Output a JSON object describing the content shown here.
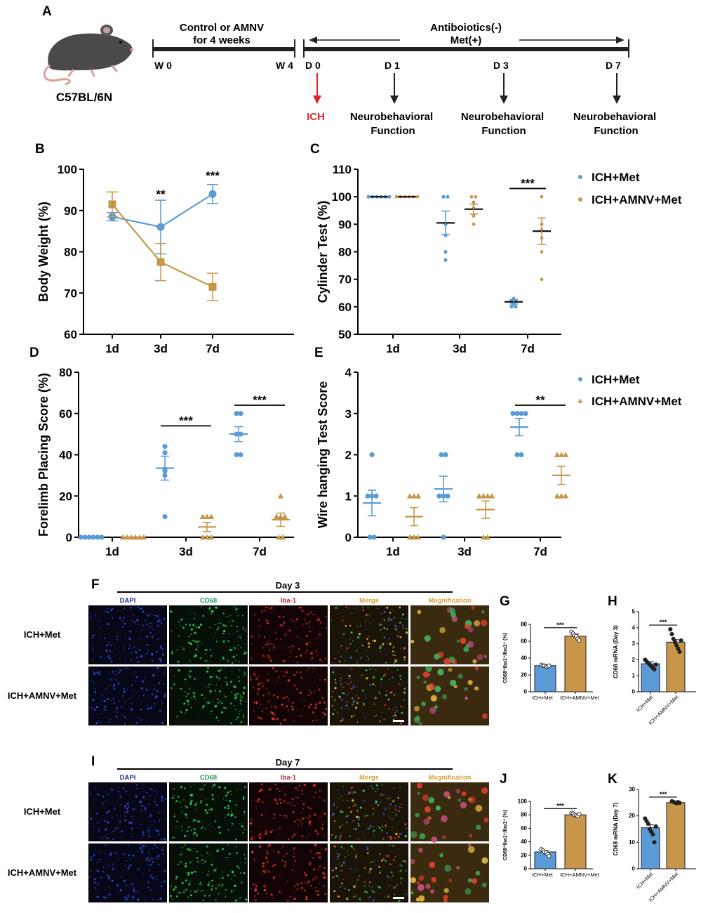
{
  "colors": {
    "blue": "#5b9bd5",
    "orange": "#c8964a",
    "red": "#d9262b",
    "black": "#000000",
    "dapi": "#1a2f8c",
    "cd68": "#1f9a4a",
    "iba": "#c0262a",
    "merge": "#d4a13a"
  },
  "panel_labels": {
    "A": "A",
    "B": "B",
    "C": "C",
    "D": "D",
    "E": "E",
    "F": "F",
    "G": "G",
    "H": "H",
    "I": "I",
    "J": "J",
    "K": "K"
  },
  "timeline": {
    "mouse_strain": "C57BL/6N",
    "phase1_line1": "Control or AMNV",
    "phase1_line2": "for 4 weeks",
    "w0": "W 0",
    "w4": "W 4",
    "phase2_line1": "Antiboiotics(-)",
    "phase2_line2": "Met(+)",
    "d0": "D 0",
    "d1": "D  1",
    "d3": "D  3",
    "d7": "D  7",
    "ich": "ICH",
    "neuro_line1": "Neurobehavioral",
    "neuro_line2": "Function"
  },
  "chart_data": [
    {
      "id": "B",
      "type": "line",
      "ylabel": "Body Weight (%)",
      "categories": [
        "1d",
        "3d",
        "7d"
      ],
      "ylim": [
        60,
        100
      ],
      "yticks": [
        60,
        70,
        80,
        90,
        100
      ],
      "series": [
        {
          "name": "ICH+Met",
          "values": [
            88.5,
            86,
            94
          ],
          "err": [
            1,
            6.5,
            2.3
          ],
          "marker": "circle"
        },
        {
          "name": "ICH+AMNV+Met",
          "values": [
            91.5,
            77.5,
            71.5
          ],
          "err": [
            3,
            4.5,
            3.3
          ],
          "marker": "square"
        }
      ],
      "sig": [
        {
          "cat": 1,
          "text": "**",
          "y": 93
        },
        {
          "cat": 2,
          "text": "***",
          "y": 97.5
        }
      ]
    },
    {
      "id": "C",
      "type": "scatter",
      "ylabel": "Cylinder Test (%)",
      "categories": [
        "1d",
        "3d",
        "7d"
      ],
      "ylim": [
        50,
        110
      ],
      "yticks": [
        50,
        60,
        70,
        80,
        90,
        100,
        110
      ],
      "series": [
        {
          "name": "ICH+Met",
          "mean": [
            100,
            90.5,
            61.8
          ],
          "sem": [
            0,
            4.3,
            0.8
          ],
          "points": [
            [
              100,
              100,
              100,
              100,
              100,
              100
            ],
            [
              100,
              100,
              90,
              86,
              80,
              77
            ],
            [
              63,
              62,
              62,
              61,
              60,
              60
            ]
          ]
        },
        {
          "name": "ICH+AMNV+Met",
          "mean": [
            100,
            95.5,
            87.5
          ],
          "sem": [
            0,
            1.8,
            4.8
          ],
          "points": [
            [
              100,
              100,
              100,
              100,
              100,
              100
            ],
            [
              100,
              100,
              98,
              96,
              93,
              90
            ],
            [
              100,
              90,
              88,
              85,
              80,
              70
            ]
          ]
        }
      ],
      "sig": [
        {
          "cat": 2,
          "text": "***",
          "y": 103
        }
      ],
      "legend": [
        "ICH+Met",
        "ICH+AMNV+Met"
      ]
    },
    {
      "id": "D",
      "type": "scatter",
      "ylabel": "Forelimb Placing Score (%)",
      "categories": [
        "1d",
        "3d",
        "7d"
      ],
      "ylim": [
        0,
        80
      ],
      "yticks": [
        0,
        20,
        40,
        60,
        80
      ],
      "series": [
        {
          "name": "ICH+Met",
          "mean": [
            0,
            33.5,
            50
          ],
          "sem": [
            0,
            5.8,
            3.6
          ],
          "points": [
            [
              0,
              0,
              0,
              0,
              0,
              0
            ],
            [
              44,
              41,
              33,
              32,
              30,
              10
            ],
            [
              60,
              60,
              50,
              50,
              40,
              40
            ]
          ]
        },
        {
          "name": "ICH+AMNV+Met",
          "mean": [
            0,
            5,
            8.5
          ],
          "sem": [
            0,
            2.2,
            3.2
          ],
          "points": [
            [
              0,
              0,
              0,
              0,
              0,
              0
            ],
            [
              10,
              10,
              10,
              0,
              0,
              0
            ],
            [
              20,
              10,
              10,
              10,
              0,
              0
            ]
          ]
        }
      ],
      "sig": [
        {
          "cat": 1,
          "text": "***",
          "y": 54
        },
        {
          "cat": 2,
          "text": "***",
          "y": 64
        }
      ]
    },
    {
      "id": "E",
      "type": "scatter",
      "ylabel": "Wire hanging Test Score",
      "categories": [
        "1d",
        "3d",
        "7d"
      ],
      "ylim": [
        0,
        4
      ],
      "yticks": [
        0,
        1,
        2,
        3,
        4
      ],
      "series": [
        {
          "name": "ICH+Met",
          "mean": [
            0.83,
            1.17,
            2.67
          ],
          "sem": [
            0.31,
            0.31,
            0.21
          ],
          "points": [
            [
              2,
              1,
              1,
              1,
              0,
              0
            ],
            [
              2,
              2,
              1,
              1,
              1,
              0
            ],
            [
              3,
              3,
              3,
              3,
              2,
              2
            ]
          ]
        },
        {
          "name": "ICH+AMNV+Met",
          "mean": [
            0.5,
            0.67,
            1.5
          ],
          "sem": [
            0.22,
            0.21,
            0.22
          ],
          "points": [
            [
              1,
              1,
              1,
              0,
              0,
              0
            ],
            [
              1,
              1,
              1,
              1,
              0,
              0
            ],
            [
              2,
              2,
              2,
              1,
              1,
              1
            ]
          ]
        }
      ],
      "sig": [
        {
          "cat": 2,
          "text": "**",
          "y": 3.2
        }
      ],
      "legend": [
        "ICH+Met",
        "ICH+AMNV+Met"
      ]
    },
    {
      "id": "G",
      "type": "bar",
      "ylabel": "CD68⁺Iba1⁺/Iba1⁺ (%)",
      "categories": [
        "ICH+Met",
        "ICH+AMNV+Met"
      ],
      "values": [
        31,
        66
      ],
      "sem": [
        1,
        2.5
      ],
      "points": [
        [
          32,
          31,
          31,
          30,
          30,
          31
        ],
        [
          71,
          69,
          67,
          66,
          63,
          61
        ]
      ],
      "ylim": [
        0,
        80
      ],
      "yticks": [
        0,
        20,
        40,
        60,
        80
      ],
      "sig": "***"
    },
    {
      "id": "H",
      "type": "bar",
      "ylabel": "CD68 mRNA (Day 3)",
      "categories": [
        "ICH+Met",
        "ICH+AMNV+Met"
      ],
      "values": [
        1.75,
        3.1
      ],
      "sem": [
        0.12,
        0.15
      ],
      "points": [
        [
          2.0,
          1.9,
          1.8,
          1.7,
          1.6,
          1.5,
          1.4,
          1.7
        ],
        [
          3.9,
          3.6,
          3.3,
          3.1,
          2.9,
          2.7,
          2.5,
          3.2
        ]
      ],
      "ylim": [
        0,
        5
      ],
      "yticks": [
        0,
        1,
        2,
        3,
        4,
        5
      ],
      "sig": "***",
      "rotated": true
    },
    {
      "id": "J",
      "type": "bar",
      "ylabel": "CD68⁺Iba1⁺/Iba1⁺ (%)",
      "categories": [
        "ICH+Met",
        "ICH+AMNV+Met"
      ],
      "values": [
        25,
        80
      ],
      "sem": [
        2,
        1.5
      ],
      "points": [
        [
          29,
          27,
          25,
          24,
          22,
          19
        ],
        [
          83,
          82,
          80,
          79,
          78,
          81
        ]
      ],
      "ylim": [
        0,
        100
      ],
      "yticks": [
        0,
        20,
        40,
        60,
        80,
        100
      ],
      "sig": "***"
    },
    {
      "id": "K",
      "type": "bar",
      "ylabel": "CD68 mRNA (Day 7)",
      "categories": [
        "ICH+Met",
        "ICH+AMNV+Met"
      ],
      "values": [
        15.5,
        25
      ],
      "sem": [
        1.2,
        0.3
      ],
      "points": [
        [
          19,
          18,
          17,
          15,
          14,
          13,
          10,
          16
        ],
        [
          25.5,
          25.3,
          25,
          24.8,
          25.2,
          24.9
        ]
      ],
      "ylim": [
        0,
        30
      ],
      "yticks": [
        0,
        10,
        20,
        30
      ],
      "sig": "***",
      "rotated": true
    }
  ],
  "micro": {
    "day3": "Day 3",
    "day7": "Day 7",
    "columns": [
      "DAPI",
      "CD68",
      "Iba-1",
      "Merge",
      "Magnification"
    ],
    "rows": [
      "ICH+Met",
      "ICH+AMNV+Met"
    ]
  }
}
